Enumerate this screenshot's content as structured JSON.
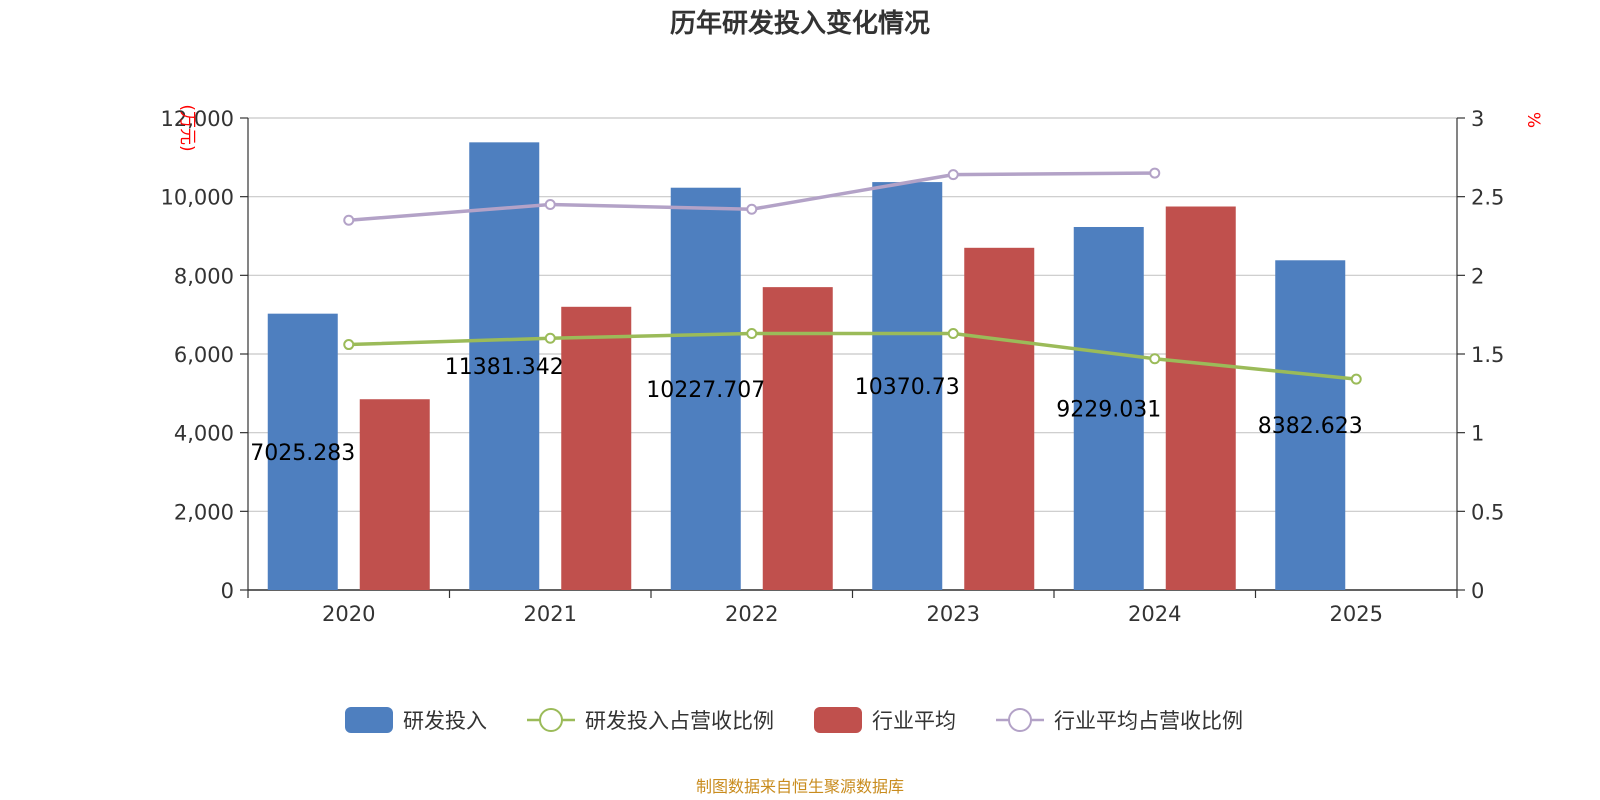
{
  "chart_data": {
    "type": "bar",
    "title": "历年研发投入变化情况",
    "categories": [
      "2020",
      "2021",
      "2022",
      "2023",
      "2024",
      "2025"
    ],
    "y_left": {
      "unit": "万元",
      "range": [
        0,
        12000
      ],
      "ticks": [
        "0",
        "2,000",
        "4,000",
        "6,000",
        "8,000",
        "10,000",
        "12,000"
      ],
      "tick_values": [
        0,
        2000,
        4000,
        6000,
        8000,
        10000,
        12000
      ]
    },
    "y_right": {
      "unit": "%",
      "range": [
        0,
        3
      ],
      "ticks": [
        "0",
        "0.5",
        "1",
        "1.5",
        "2",
        "2.5",
        "3"
      ],
      "tick_values": [
        0,
        0.5,
        1,
        1.5,
        2,
        2.5,
        3
      ]
    },
    "grid": true,
    "legend_position": "bottom",
    "series": [
      {
        "name": "研发投入",
        "kind": "bar",
        "axis": "left",
        "color": "#4e7fbf",
        "values": [
          7025.283,
          11381.342,
          10227.707,
          10370.73,
          9229.031,
          8382.623
        ],
        "labels": [
          "7025.283",
          "11381.342",
          "10227.707",
          "10370.73",
          "9229.031",
          "8382.623"
        ]
      },
      {
        "name": "研发投入占营收比例",
        "kind": "line",
        "axis": "right",
        "color": "#9bbb59",
        "values": [
          1.56,
          1.6,
          1.63,
          1.63,
          1.47,
          1.34
        ]
      },
      {
        "name": "行业平均",
        "kind": "bar",
        "axis": "left",
        "color": "#c0504d",
        "values": [
          4850,
          7200,
          7700,
          8700,
          9750,
          null
        ]
      },
      {
        "name": "行业平均占营收比例",
        "kind": "line",
        "axis": "right",
        "color": "#b3a2c7",
        "values": [
          2.35,
          2.45,
          2.42,
          2.64,
          2.65,
          null
        ]
      }
    ]
  },
  "source_note": "制图数据来自恒生聚源数据库"
}
